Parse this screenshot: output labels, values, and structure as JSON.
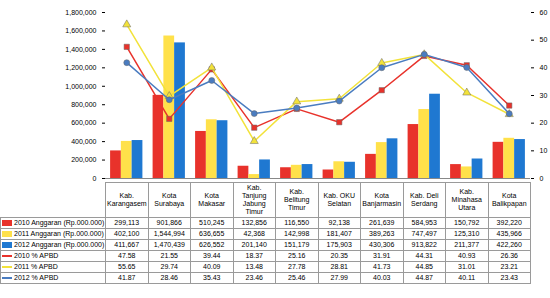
{
  "chart_data": {
    "type": "bar",
    "categories": [
      "Kab. Karangasem",
      "Kota Surabaya",
      "Kota Makasar",
      "Kab. Tanjung Jabung Timur",
      "Kab. Belitung Timur",
      "Kab. OKU Selatan",
      "Kota Banjarmasin",
      "Kab. Deli Serdang",
      "Kab. Minahasa Utara",
      "Kota Balikpapan"
    ],
    "series": [
      {
        "name": "2010 Anggaran (Rp.000.000)",
        "type": "bar",
        "color": "#e8322b",
        "values": [
          299113,
          901866,
          510245,
          132856,
          116550,
          92138,
          261639,
          584953,
          150792,
          392220
        ],
        "value_labels": [
          "299,113",
          "901,866",
          "510,245",
          "132,856",
          "116,550",
          "92,138",
          "261,639",
          "584,953",
          "150,792",
          "392,220"
        ]
      },
      {
        "name": "2011 Anggaran (Rp.000.000)",
        "type": "bar",
        "color": "#ffe14a",
        "values": [
          402100,
          1544994,
          636655,
          42368,
          142998,
          181407,
          389263,
          747497,
          125310,
          435966
        ],
        "value_labels": [
          "402,100",
          "1,544,994",
          "636,655",
          "42,368",
          "142,998",
          "181,407",
          "389,263",
          "747,497",
          "125,310",
          "435,966"
        ]
      },
      {
        "name": "2012 Anggaran (Rp.000.000)",
        "type": "bar",
        "color": "#1f78d1",
        "values": [
          411667,
          1470439,
          626552,
          201140,
          151179,
          175903,
          430306,
          913822,
          211377,
          422260
        ],
        "value_labels": [
          "411,667",
          "1,470,439",
          "626,552",
          "201,140",
          "151,179",
          "175,903",
          "430,306",
          "913,822",
          "211,377",
          "422,260"
        ]
      },
      {
        "name": "2010 % APBD",
        "type": "line",
        "axis": "y2",
        "color": "#e8322b",
        "marker": "square",
        "values": [
          47.58,
          21.55,
          39.44,
          18.37,
          25.16,
          20.35,
          31.91,
          44.31,
          40.93,
          26.36
        ]
      },
      {
        "name": "2011 % APBD",
        "type": "line",
        "axis": "y2",
        "color": "#f2e23a",
        "marker": "triangle",
        "values": [
          55.65,
          29.74,
          40.09,
          13.48,
          27.78,
          28.81,
          41.73,
          44.85,
          31.01,
          23.21
        ]
      },
      {
        "name": "2012 % APBD",
        "type": "line",
        "axis": "y2",
        "color": "#4a7cc0",
        "marker": "circle",
        "values": [
          41.87,
          28.46,
          35.43,
          23.46,
          25.46,
          27.99,
          40.03,
          44.87,
          40.11,
          23.43
        ]
      }
    ],
    "ylim": [
      0,
      1800000
    ],
    "yticks": [
      0,
      {
        "value": 200000,
        "label": "200,000"
      },
      {
        "value": 400000,
        "label": "400,000"
      },
      {
        "value": 600000,
        "label": "600,000"
      },
      {
        "value": 800000,
        "label": "800,000"
      },
      {
        "value": 1000000,
        "label": "1,000,000"
      },
      {
        "value": 1200000,
        "label": "1,200,000"
      },
      {
        "value": 1400000,
        "label": "1,400,000"
      },
      {
        "value": 1600000,
        "label": "1,600,000"
      },
      {
        "value": 1800000,
        "label": "1,800,000"
      }
    ],
    "y2lim": [
      0,
      60
    ],
    "y2ticks": [
      0,
      10,
      20,
      30,
      40,
      50,
      60
    ],
    "tick_labels": "y"
  }
}
